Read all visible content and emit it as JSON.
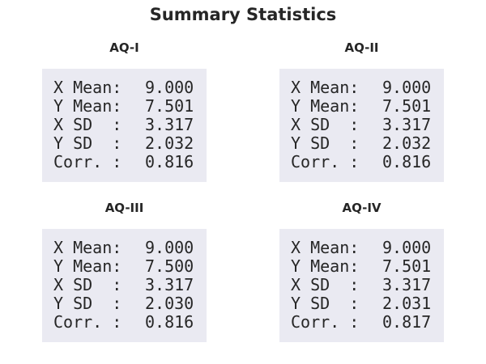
{
  "header": {
    "title": "Summary Statistics"
  },
  "panels": [
    {
      "title": "AQ-I",
      "rows": [
        {
          "label": "X Mean:",
          "value": "9.000"
        },
        {
          "label": "Y Mean:",
          "value": "7.501"
        },
        {
          "label": "X SD  :",
          "value": "3.317"
        },
        {
          "label": "Y SD  :",
          "value": "2.032"
        },
        {
          "label": "Corr. :",
          "value": "0.816"
        }
      ]
    },
    {
      "title": "AQ-II",
      "rows": [
        {
          "label": "X Mean:",
          "value": "9.000"
        },
        {
          "label": "Y Mean:",
          "value": "7.501"
        },
        {
          "label": "X SD  :",
          "value": "3.317"
        },
        {
          "label": "Y SD  :",
          "value": "2.032"
        },
        {
          "label": "Corr. :",
          "value": "0.816"
        }
      ]
    },
    {
      "title": "AQ-III",
      "rows": [
        {
          "label": "X Mean:",
          "value": "9.000"
        },
        {
          "label": "Y Mean:",
          "value": "7.500"
        },
        {
          "label": "X SD  :",
          "value": "3.317"
        },
        {
          "label": "Y SD  :",
          "value": "2.030"
        },
        {
          "label": "Corr. :",
          "value": "0.816"
        }
      ]
    },
    {
      "title": "AQ-IV",
      "rows": [
        {
          "label": "X Mean:",
          "value": "9.000"
        },
        {
          "label": "Y Mean:",
          "value": "7.501"
        },
        {
          "label": "X SD  :",
          "value": "3.317"
        },
        {
          "label": "Y SD  :",
          "value": "2.031"
        },
        {
          "label": "Corr. :",
          "value": "0.817"
        }
      ]
    }
  ]
}
